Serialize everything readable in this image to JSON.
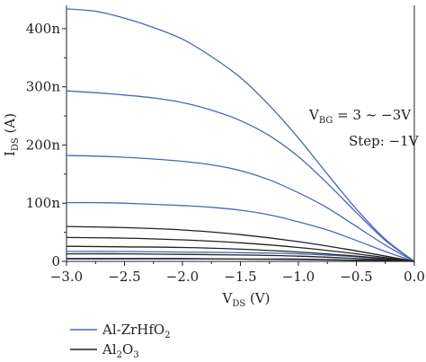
{
  "chart_data": {
    "type": "line",
    "xlabel": {
      "main": "V",
      "sub": "DS",
      "unit": " (V)"
    },
    "ylabel": {
      "main": "I",
      "sub": "DS",
      "unit": " (A)"
    },
    "xlim": [
      -3.0,
      0.0
    ],
    "ylim": [
      0,
      440
    ],
    "y_unit_note": "nA",
    "x_ticks": [
      -3.0,
      -2.5,
      -2.0,
      -1.5,
      -1.0,
      -0.5,
      0.0
    ],
    "x_tick_labels": [
      "−3.0",
      "−2.5",
      "−2.0",
      "−1.5",
      "−1.0",
      "−0.5",
      "0.0"
    ],
    "y_ticks": [
      0,
      100,
      200,
      300,
      400
    ],
    "y_tick_labels": [
      "0",
      "100n",
      "200n",
      "300n",
      "400n"
    ],
    "grid": false,
    "annotation": {
      "line1_main": "V",
      "line1_sub": "BG",
      "line1_rest": " = 3 ~ −3V",
      "line2": "Step: −1V"
    },
    "legend": {
      "placement": "below",
      "entries": [
        {
          "main": "Al-ZrHfO",
          "sub": "2",
          "rest": "",
          "color": "#4a66b8"
        },
        {
          "main": "Al",
          "sub": "2",
          "rest": "O",
          "sub2": "3",
          "color": "#222222"
        }
      ]
    },
    "series": [
      {
        "group": "Al-ZrHfO2",
        "color": "#4a66b8",
        "x": [
          -3.0,
          -2.75,
          -2.5,
          -2.25,
          -2.0,
          -1.75,
          -1.5,
          -1.25,
          -1.0,
          -0.75,
          -0.5,
          -0.25,
          0.0
        ],
        "y": [
          434,
          430,
          418,
          402,
          382,
          352,
          316,
          268,
          212,
          150,
          90,
          38,
          0
        ]
      },
      {
        "group": "Al-ZrHfO2",
        "color": "#4a66b8",
        "x": [
          -3.0,
          -2.75,
          -2.5,
          -2.25,
          -2.0,
          -1.75,
          -1.5,
          -1.25,
          -1.0,
          -0.75,
          -0.5,
          -0.25,
          0.0
        ],
        "y": [
          293,
          290,
          286,
          281,
          273,
          260,
          242,
          216,
          180,
          134,
          84,
          36,
          0
        ]
      },
      {
        "group": "Al-ZrHfO2",
        "color": "#4a66b8",
        "x": [
          -3.0,
          -2.75,
          -2.5,
          -2.25,
          -2.0,
          -1.75,
          -1.5,
          -1.25,
          -1.0,
          -0.75,
          -0.5,
          -0.25,
          0.0
        ],
        "y": [
          182,
          181,
          179,
          176,
          172,
          166,
          156,
          140,
          118,
          92,
          60,
          28,
          0
        ]
      },
      {
        "group": "Al-ZrHfO2",
        "color": "#4a66b8",
        "x": [
          -3.0,
          -2.75,
          -2.5,
          -2.25,
          -2.0,
          -1.75,
          -1.5,
          -1.25,
          -1.0,
          -0.75,
          -0.5,
          -0.25,
          0.0
        ],
        "y": [
          101,
          101,
          100,
          98,
          96,
          93,
          88,
          80,
          68,
          54,
          36,
          17,
          0
        ]
      },
      {
        "group": "Al-ZrHfO2",
        "color": "#4a66b8",
        "x": [
          -3.0,
          -2.5,
          -2.0,
          -1.5,
          -1.0,
          -0.5,
          0.0
        ],
        "y": [
          17,
          17,
          16,
          15,
          13,
          8,
          0
        ]
      },
      {
        "group": "Al-ZrHfO2",
        "color": "#4a66b8",
        "x": [
          -3.0,
          -2.5,
          -2.0,
          -1.5,
          -1.0,
          -0.5,
          0.0
        ],
        "y": [
          4,
          4,
          4,
          4,
          3,
          2,
          0
        ]
      },
      {
        "group": "Al2O3",
        "color": "#222222",
        "x": [
          -3.0,
          -2.5,
          -2.0,
          -1.5,
          -1.0,
          -0.5,
          0.0
        ],
        "y": [
          60,
          58,
          54,
          46,
          34,
          18,
          0
        ]
      },
      {
        "group": "Al2O3",
        "color": "#222222",
        "x": [
          -3.0,
          -2.5,
          -2.0,
          -1.5,
          -1.0,
          -0.5,
          0.0
        ],
        "y": [
          41,
          40,
          37,
          32,
          24,
          13,
          0
        ]
      },
      {
        "group": "Al2O3",
        "color": "#222222",
        "x": [
          -3.0,
          -2.5,
          -2.0,
          -1.5,
          -1.0,
          -0.5,
          0.0
        ],
        "y": [
          26,
          25,
          24,
          21,
          16,
          9,
          0
        ]
      },
      {
        "group": "Al2O3",
        "color": "#222222",
        "x": [
          -3.0,
          -2.5,
          -2.0,
          -1.5,
          -1.0,
          -0.5,
          0.0
        ],
        "y": [
          13,
          13,
          12,
          11,
          9,
          5,
          0
        ]
      },
      {
        "group": "Al2O3",
        "color": "#222222",
        "x": [
          -3.0,
          -2.5,
          -2.0,
          -1.5,
          -1.0,
          -0.5,
          0.0
        ],
        "y": [
          5,
          5,
          5,
          4,
          4,
          2,
          0
        ]
      }
    ]
  }
}
